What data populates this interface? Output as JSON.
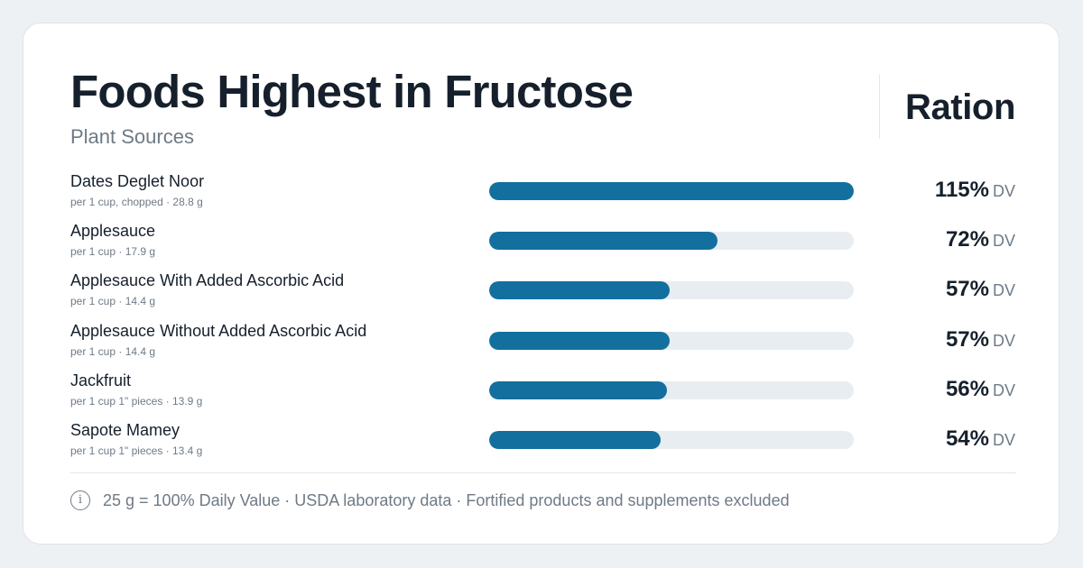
{
  "header": {
    "title": "Foods Highest in Fructose",
    "subtitle": "Plant Sources",
    "brand": "Ration"
  },
  "chart_data": {
    "type": "bar",
    "orientation": "horizontal",
    "title": "Foods Highest in Fructose",
    "subtitle": "Plant Sources",
    "value_unit": "DV",
    "xlim": [
      0,
      115
    ],
    "rows": [
      {
        "name": "Dates Deglet Noor",
        "serving": "per 1 cup, chopped · 28.8 g",
        "value": 115,
        "label": "115%"
      },
      {
        "name": "Applesauce",
        "serving": "per 1 cup · 17.9 g",
        "value": 72,
        "label": "72%"
      },
      {
        "name": "Applesauce With Added Ascorbic Acid",
        "serving": "per 1 cup · 14.4 g",
        "value": 57,
        "label": "57%"
      },
      {
        "name": "Applesauce Without Added Ascorbic Acid",
        "serving": "per 1 cup · 14.4 g",
        "value": 57,
        "label": "57%"
      },
      {
        "name": "Jackfruit",
        "serving": "per 1 cup 1\" pieces · 13.9 g",
        "value": 56,
        "label": "56%"
      },
      {
        "name": "Sapote Mamey",
        "serving": "per 1 cup 1\" pieces · 13.4 g",
        "value": 54,
        "label": "54%"
      }
    ],
    "colors": {
      "bar": "#136f9e",
      "track": "#e8edf2"
    }
  },
  "footer": {
    "icon": "info-icon",
    "note": "25 g = 100% Daily Value · USDA laboratory data · Fortified products and supplements excluded"
  }
}
